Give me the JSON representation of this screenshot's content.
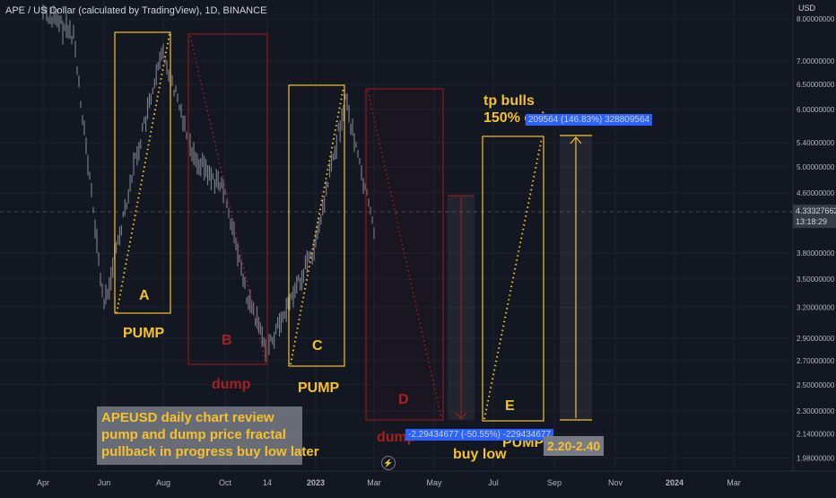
{
  "header": {
    "symbol_title": "APE / US Dollar (calculated by TradingView), 1D, BINANCE",
    "currency": "USD"
  },
  "colors": {
    "background": "#131722",
    "grid": "#1e222d",
    "candles": "#787b86",
    "pump_box": "#f5c22b",
    "dump_box": "#8b1a1a",
    "label_pump": "#f5c22b",
    "label_dump": "#a52020",
    "price_tag": "#2962ff"
  },
  "chart_data": {
    "type": "line",
    "title": "APE / US Dollar (calculated by TradingView), 1D, BINANCE",
    "ylabel": "USD",
    "y_scale": "log",
    "ylim": [
      1.9,
      8.5
    ],
    "x_ticks": [
      "Apr",
      "Jun",
      "Aug",
      "Oct",
      "14",
      "2023",
      "Mar",
      "May",
      "Jul",
      "Sep",
      "Nov",
      "2024",
      "Mar"
    ],
    "y_ticks": [
      "8.00000000",
      "7.00000000",
      "6.50000000",
      "6.00000000",
      "5.40000000",
      "5.00000000",
      "4.60000000",
      "3.80000000",
      "3.50000000",
      "3.20000000",
      "2.90000000",
      "2.70000000",
      "2.50000000",
      "2.30000000",
      "2.14000000",
      "1.98000000"
    ],
    "current_price": "4.33327662",
    "countdown": "13:18:29",
    "series": [
      {
        "values": [
          {
            "x": "Apr",
            "y": 8.2
          },
          {
            "x": "May",
            "y": 7.6
          },
          {
            "x": "Jun",
            "y": 3.2
          },
          {
            "x": "Jul",
            "y": 5.0
          },
          {
            "x": "Aug",
            "y": 7.2
          },
          {
            "x": "Sep",
            "y": 5.2
          },
          {
            "x": "Oct",
            "y": 4.6
          },
          {
            "x": "Nov",
            "y": 3.3
          },
          {
            "x": "14",
            "y": 2.8
          },
          {
            "x": "Dec",
            "y": 3.3
          },
          {
            "x": "2023",
            "y": 3.9
          },
          {
            "x": "Feb",
            "y": 6.2
          },
          {
            "x": "Mar",
            "y": 4.1
          }
        ]
      }
    ],
    "annotations": {
      "labels": {
        "a": "A",
        "b": "B",
        "c": "C",
        "d": "D",
        "e": "E",
        "pump_1": "PUMP",
        "dump_1": "dump",
        "pump_2": "PUMP",
        "dump_2": "dump",
        "pump_3": "PUMP",
        "buy_low": "buy low",
        "tp_line1": "tp bulls",
        "tp_line2": "150% gains"
      },
      "tag_top": "209564 (146.83%) 328809564",
      "tag_bottom": "-2.29434677 (-50.55%) -229434677",
      "range_label": "2.20-2.40",
      "info_box": [
        "APEUSD daily chart review",
        "pump and dump price fractal",
        "pullback in progress buy low later"
      ]
    }
  }
}
